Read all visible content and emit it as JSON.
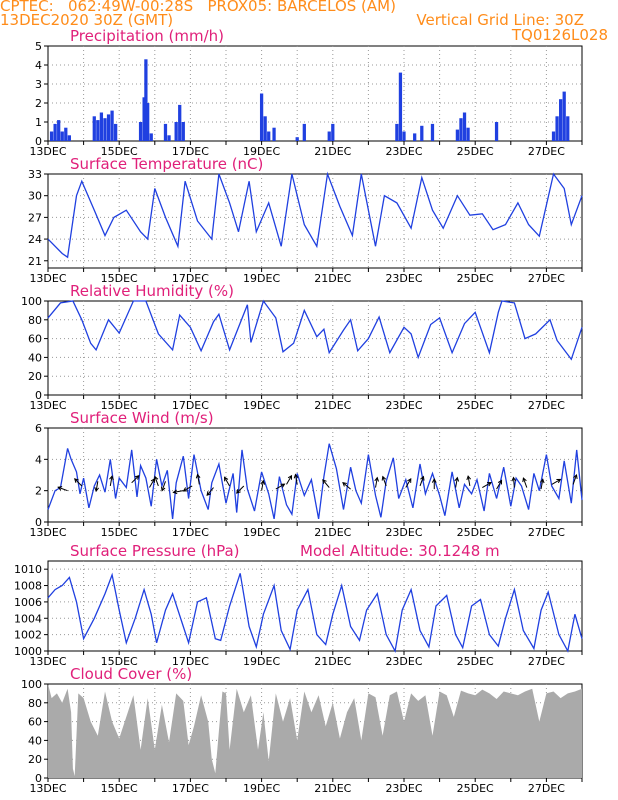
{
  "header": {
    "line1": "CPTEC:   062:49W-00:28S   PROX05: BARCELOS (AM)",
    "line2": "13DEC2020 30Z (GMT)",
    "grid_note": "Vertical Grid Line: 30Z",
    "code": "TQ0126L028"
  },
  "colors": {
    "header": "#ff8c1a",
    "title": "#e0207a",
    "line": "#2040e0",
    "bar": "#2040e0",
    "cloud": "#aaaaaa"
  },
  "chart_data": [
    {
      "type": "bar",
      "title": "Precipitation (mm/h)",
      "x_unit": "days since 13DEC2020 00Z",
      "x_range": [
        0,
        15
      ],
      "x_ticks": [
        "13DEC",
        "15DEC",
        "17DEC",
        "19DEC",
        "21DEC",
        "23DEC",
        "25DEC",
        "27DEC"
      ],
      "ylim": [
        0,
        5
      ],
      "yticks": [
        0,
        1,
        2,
        3,
        4,
        5
      ],
      "bars": [
        [
          0.1,
          0.5
        ],
        [
          0.2,
          0.9
        ],
        [
          0.3,
          1.1
        ],
        [
          0.4,
          0.5
        ],
        [
          0.5,
          0.7
        ],
        [
          0.6,
          0.3
        ],
        [
          1.3,
          1.3
        ],
        [
          1.4,
          1.1
        ],
        [
          1.5,
          1.5
        ],
        [
          1.6,
          1.2
        ],
        [
          1.7,
          1.4
        ],
        [
          1.8,
          1.6
        ],
        [
          1.9,
          0.9
        ],
        [
          2.6,
          1.0
        ],
        [
          2.7,
          2.3
        ],
        [
          2.75,
          4.3
        ],
        [
          2.8,
          2.0
        ],
        [
          2.9,
          0.4
        ],
        [
          3.3,
          0.9
        ],
        [
          3.4,
          0.3
        ],
        [
          3.6,
          1.0
        ],
        [
          3.7,
          1.9
        ],
        [
          3.8,
          1.0
        ],
        [
          6.0,
          2.5
        ],
        [
          6.1,
          1.3
        ],
        [
          6.2,
          0.5
        ],
        [
          6.35,
          0.7
        ],
        [
          7.0,
          0.2
        ],
        [
          7.2,
          0.9
        ],
        [
          7.9,
          0.5
        ],
        [
          8.0,
          0.9
        ],
        [
          9.8,
          0.9
        ],
        [
          9.9,
          3.6
        ],
        [
          10.0,
          0.5
        ],
        [
          10.3,
          0.4
        ],
        [
          10.5,
          0.8
        ],
        [
          10.8,
          0.9
        ],
        [
          11.5,
          0.6
        ],
        [
          11.6,
          1.2
        ],
        [
          11.7,
          1.5
        ],
        [
          11.8,
          0.7
        ],
        [
          12.6,
          1.0
        ],
        [
          14.2,
          0.5
        ],
        [
          14.3,
          1.3
        ],
        [
          14.4,
          2.2
        ],
        [
          14.5,
          2.6
        ],
        [
          14.6,
          1.3
        ]
      ]
    },
    {
      "type": "line",
      "title": "Surface Temperature (nC)",
      "ylim": [
        20,
        33
      ],
      "yticks": [
        21,
        24,
        27,
        30,
        33
      ],
      "x": [
        0,
        0.4,
        0.55,
        0.8,
        0.95,
        1.3,
        1.6,
        1.85,
        2.2,
        2.6,
        2.8,
        3.0,
        3.3,
        3.65,
        3.85,
        4.2,
        4.6,
        4.8,
        5.1,
        5.35,
        5.65,
        5.85,
        6.2,
        6.55,
        6.85,
        7.2,
        7.55,
        7.85,
        8.2,
        8.55,
        8.8,
        9.2,
        9.45,
        9.8,
        10.2,
        10.5,
        10.8,
        11.1,
        11.5,
        11.85,
        12.2,
        12.5,
        12.85,
        13.2,
        13.5,
        13.8,
        14.2,
        14.5,
        14.7,
        15.0
      ],
      "y": [
        24,
        22,
        21.5,
        30,
        32,
        28,
        24.5,
        27,
        28,
        25,
        24,
        31,
        27,
        23,
        32,
        26.5,
        24,
        33,
        29,
        25,
        32,
        25,
        29,
        23,
        33,
        26,
        23,
        33,
        28.5,
        24.5,
        33.2,
        23,
        30,
        29,
        25.5,
        32.5,
        28,
        25.5,
        30,
        27.3,
        27.5,
        25.3,
        26,
        29,
        26,
        24.4,
        33.3,
        31,
        26,
        30
      ],
      "series": [
        {
          "name": "",
          "color": "#2040e0"
        }
      ]
    },
    {
      "type": "line",
      "title": "Relative Humidity (%)",
      "ylim": [
        0,
        100
      ],
      "yticks": [
        0,
        20,
        40,
        60,
        80,
        100
      ],
      "x": [
        0,
        0.35,
        0.7,
        0.95,
        1.2,
        1.35,
        1.7,
        2.0,
        2.4,
        2.75,
        3.1,
        3.5,
        3.7,
        4.0,
        4.3,
        4.65,
        4.8,
        5.1,
        5.6,
        5.7,
        6.05,
        6.4,
        6.6,
        6.9,
        7.2,
        7.55,
        7.75,
        7.9,
        8.3,
        8.5,
        8.7,
        9.0,
        9.3,
        9.6,
        10.0,
        10.2,
        10.4,
        10.75,
        11.0,
        11.35,
        11.7,
        12.0,
        12.4,
        12.65,
        12.75,
        13.1,
        13.4,
        13.7,
        14.1,
        14.3,
        14.7,
        15.0
      ],
      "y": [
        82,
        98,
        100,
        80,
        55,
        48,
        80,
        66,
        100,
        100,
        65,
        48,
        85,
        72,
        47,
        78,
        86,
        48,
        96,
        56,
        100,
        82,
        46,
        55,
        90,
        62,
        70,
        45,
        69,
        80,
        47,
        60,
        83,
        45,
        72,
        65,
        40,
        75,
        82,
        45,
        76,
        88,
        45,
        88,
        100,
        98,
        60,
        65,
        80,
        58,
        38,
        72
      ],
      "series": [
        {
          "name": "",
          "color": "#2040e0"
        }
      ]
    },
    {
      "type": "line",
      "title": "Surface Wind (m/s)",
      "ylim": [
        0,
        6
      ],
      "yticks": [
        0,
        2,
        4,
        6
      ],
      "x": [
        0,
        0.2,
        0.35,
        0.55,
        0.65,
        0.8,
        0.9,
        1.0,
        1.15,
        1.3,
        1.45,
        1.6,
        1.75,
        1.9,
        2.0,
        2.2,
        2.35,
        2.5,
        2.6,
        2.75,
        2.9,
        3.05,
        3.2,
        3.35,
        3.5,
        3.6,
        3.8,
        3.95,
        4.1,
        4.3,
        4.5,
        4.6,
        4.8,
        5.0,
        5.2,
        5.3,
        5.45,
        5.6,
        5.8,
        6.0,
        6.2,
        6.35,
        6.5,
        6.7,
        6.85,
        7.0,
        7.2,
        7.4,
        7.6,
        7.75,
        7.9,
        8.1,
        8.3,
        8.5,
        8.65,
        8.8,
        9.0,
        9.2,
        9.35,
        9.5,
        9.7,
        9.85,
        10.05,
        10.25,
        10.45,
        10.6,
        10.8,
        11.0,
        11.15,
        11.35,
        11.55,
        11.7,
        11.9,
        12.05,
        12.25,
        12.4,
        12.6,
        12.8,
        13.0,
        13.15,
        13.3,
        13.5,
        13.65,
        13.8,
        14.0,
        14.15,
        14.35,
        14.5,
        14.7,
        14.85,
        15.0
      ],
      "y": [
        0.8,
        2.0,
        2.2,
        4.7,
        4.0,
        3.2,
        1.8,
        2.8,
        0.9,
        2.3,
        3.0,
        1.9,
        4.0,
        1.5,
        2.8,
        2.2,
        4.6,
        1.6,
        3.6,
        2.8,
        1.0,
        4.0,
        2.3,
        3.3,
        0.2,
        2.5,
        4.2,
        1.5,
        4.3,
        2.0,
        0.8,
        2.5,
        3.7,
        1.2,
        3.1,
        0.6,
        4.6,
        2.1,
        0.7,
        3.2,
        1.8,
        0.2,
        2.9,
        1.1,
        0.5,
        3.1,
        1.7,
        2.7,
        0.2,
        2.9,
        5.0,
        3.4,
        0.8,
        3.5,
        2.0,
        1.2,
        4.3,
        1.7,
        0.3,
        2.6,
        4.1,
        1.5,
        2.7,
        0.9,
        3.7,
        1.8,
        3.1,
        1.7,
        0.4,
        3.2,
        0.9,
        2.4,
        1.8,
        2.7,
        0.7,
        3.1,
        1.5,
        3.5,
        1.0,
        2.8,
        2.3,
        0.8,
        3.1,
        2.0,
        4.3,
        2.3,
        1.5,
        3.9,
        1.2,
        4.6,
        1.4
      ],
      "arrows": [
        [
          0.55,
          2.0,
          160
        ],
        [
          0.95,
          2.3,
          135
        ],
        [
          1.4,
          2.6,
          260
        ],
        [
          1.75,
          2.3,
          80
        ],
        [
          2.35,
          2.5,
          45
        ],
        [
          2.85,
          2.2,
          60
        ],
        [
          3.1,
          2.3,
          110
        ],
        [
          3.3,
          2.6,
          250
        ],
        [
          3.8,
          2.0,
          190
        ],
        [
          4.05,
          2.3,
          210
        ],
        [
          4.25,
          2.4,
          100
        ],
        [
          4.65,
          2.2,
          230
        ],
        [
          5.1,
          2.3,
          120
        ],
        [
          5.5,
          2.3,
          225
        ],
        [
          6.0,
          2.0,
          80
        ],
        [
          6.4,
          2.1,
          30
        ],
        [
          6.7,
          2.4,
          60
        ],
        [
          7.0,
          2.4,
          100
        ],
        [
          7.9,
          2.2,
          130
        ],
        [
          8.5,
          2.1,
          140
        ],
        [
          9.2,
          2.2,
          80
        ],
        [
          9.5,
          2.3,
          110
        ],
        [
          10.05,
          2.2,
          60
        ],
        [
          10.45,
          2.3,
          70
        ],
        [
          10.85,
          2.1,
          90
        ],
        [
          11.45,
          2.2,
          80
        ],
        [
          11.85,
          2.3,
          100
        ],
        [
          12.2,
          2.2,
          30
        ],
        [
          12.6,
          2.1,
          60
        ],
        [
          13.1,
          2.2,
          95
        ],
        [
          13.45,
          2.2,
          110
        ],
        [
          13.85,
          2.1,
          80
        ],
        [
          14.15,
          2.4,
          30
        ],
        [
          14.75,
          2.4,
          70
        ]
      ],
      "series": [
        {
          "name": "",
          "color": "#2040e0"
        }
      ]
    },
    {
      "type": "line",
      "title": "Surface Pressure (hPa)",
      "annotation": "Model Altitude: 30.1248 m",
      "ylim": [
        1000,
        1011
      ],
      "yticks": [
        1000,
        1002,
        1004,
        1006,
        1008,
        1010
      ],
      "x": [
        0,
        0.2,
        0.4,
        0.6,
        0.8,
        1.0,
        1.3,
        1.6,
        1.8,
        2.0,
        2.2,
        2.45,
        2.7,
        2.9,
        3.05,
        3.3,
        3.5,
        3.8,
        3.95,
        4.2,
        4.45,
        4.7,
        4.85,
        5.1,
        5.4,
        5.65,
        5.85,
        6.05,
        6.35,
        6.55,
        6.8,
        7.0,
        7.3,
        7.55,
        7.8,
        8.0,
        8.25,
        8.5,
        8.75,
        8.95,
        9.25,
        9.5,
        9.75,
        9.95,
        10.2,
        10.45,
        10.7,
        10.9,
        11.2,
        11.45,
        11.65,
        11.9,
        12.15,
        12.4,
        12.65,
        12.85,
        13.1,
        13.35,
        13.65,
        13.85,
        14.05,
        14.35,
        14.6,
        14.8,
        15.0
      ],
      "y": [
        1006.5,
        1007.5,
        1008.0,
        1009.0,
        1006.0,
        1001.5,
        1004.0,
        1007.0,
        1009.3,
        1005.0,
        1001.0,
        1004.0,
        1007.5,
        1004.5,
        1001.0,
        1005.0,
        1007.0,
        1003.0,
        1001.0,
        1006.0,
        1006.5,
        1001.5,
        1001.3,
        1005.5,
        1009.5,
        1003.0,
        1000.5,
        1004.5,
        1008.0,
        1002.5,
        1000.2,
        1005.0,
        1007.5,
        1002.0,
        1000.8,
        1004.5,
        1008.0,
        1003.0,
        1001.3,
        1005.0,
        1007.0,
        1002.0,
        1000.0,
        1005.0,
        1007.5,
        1002.5,
        1000.5,
        1005.5,
        1006.8,
        1002.0,
        1000.4,
        1005.5,
        1006.3,
        1002.0,
        1000.6,
        1004.0,
        1007.5,
        1002.5,
        1000.3,
        1005.0,
        1007.2,
        1002.0,
        1000.0,
        1004.5,
        1001.5
      ],
      "series": [
        {
          "name": "",
          "color": "#2040e0"
        }
      ]
    },
    {
      "type": "area",
      "title": "Cloud Cover (%)",
      "ylim": [
        0,
        100
      ],
      "yticks": [
        0,
        20,
        40,
        60,
        80,
        100
      ],
      "x": [
        0,
        0.1,
        0.25,
        0.4,
        0.55,
        0.65,
        0.7,
        0.75,
        0.85,
        1.0,
        1.2,
        1.4,
        1.6,
        1.8,
        2.0,
        2.2,
        2.4,
        2.6,
        2.8,
        3.0,
        3.2,
        3.4,
        3.6,
        3.8,
        3.95,
        4.1,
        4.3,
        4.5,
        4.6,
        4.7,
        4.8,
        4.9,
        5.0,
        5.1,
        5.3,
        5.5,
        5.7,
        5.9,
        6.05,
        6.2,
        6.4,
        6.6,
        6.8,
        7.0,
        7.2,
        7.4,
        7.6,
        7.8,
        8.0,
        8.2,
        8.4,
        8.6,
        8.8,
        9.0,
        9.2,
        9.4,
        9.6,
        9.8,
        10.0,
        10.2,
        10.4,
        10.6,
        10.8,
        11.0,
        11.2,
        11.4,
        11.6,
        11.8,
        12.0,
        12.2,
        12.4,
        12.6,
        12.8,
        13.0,
        13.2,
        13.4,
        13.6,
        13.8,
        14.0,
        14.2,
        14.4,
        14.6,
        14.8,
        15.0
      ],
      "y": [
        100,
        85,
        90,
        80,
        95,
        70,
        10,
        2,
        90,
        85,
        60,
        45,
        92,
        60,
        42,
        65,
        88,
        30,
        85,
        30,
        78,
        38,
        90,
        82,
        35,
        55,
        88,
        60,
        20,
        5,
        50,
        92,
        90,
        30,
        95,
        70,
        88,
        30,
        70,
        18,
        90,
        60,
        85,
        40,
        92,
        70,
        88,
        55,
        80,
        42,
        70,
        85,
        40,
        90,
        86,
        45,
        88,
        92,
        60,
        90,
        82,
        88,
        45,
        92,
        88,
        65,
        93,
        90,
        88,
        94,
        90,
        84,
        92,
        90,
        88,
        92,
        95,
        60,
        90,
        92,
        85,
        90,
        92,
        95
      ],
      "series": [
        {
          "name": "",
          "color": "#aaaaaa"
        }
      ]
    }
  ]
}
